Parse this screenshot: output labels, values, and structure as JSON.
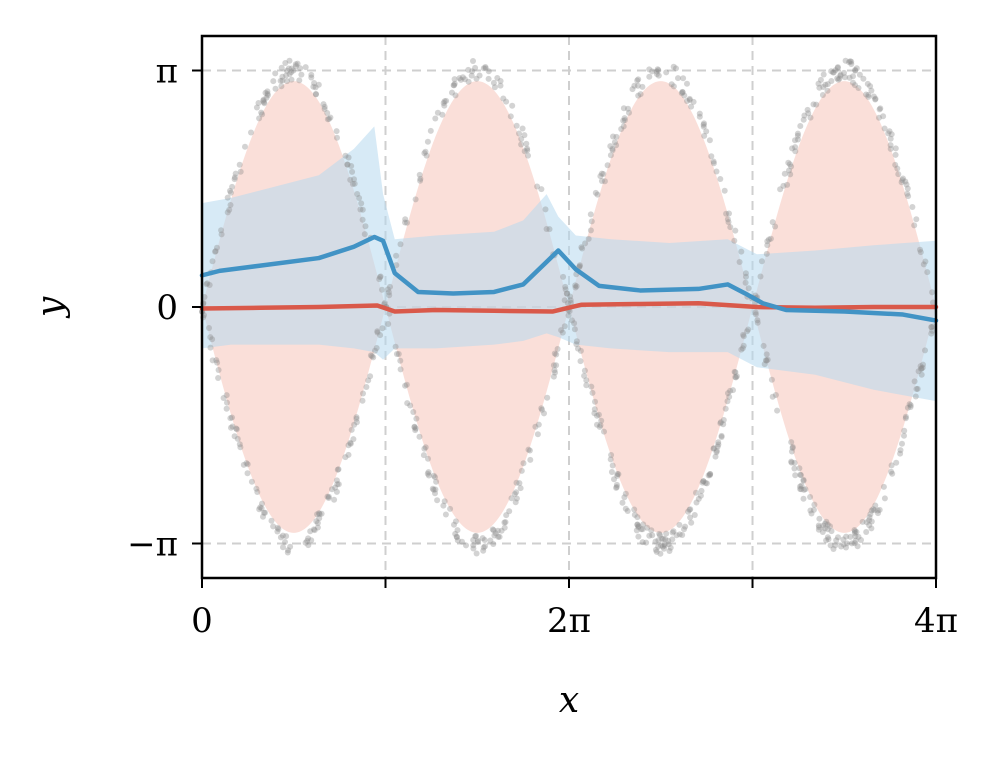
{
  "chart_data": {
    "type": "line",
    "title": "",
    "xlabel": "x",
    "ylabel": "y",
    "xlim": [
      0,
      12.566
    ],
    "ylim": [
      -3.6,
      3.6
    ],
    "grid": true,
    "legend": "none",
    "x_ticks": [
      {
        "value": 0,
        "label": "0"
      },
      {
        "value": 6.283,
        "label": "2π"
      },
      {
        "value": 12.566,
        "label": "4π"
      }
    ],
    "x_minor_ticks": [
      3.1416,
      9.4248
    ],
    "y_ticks": [
      {
        "value": 3.1416,
        "label": "π"
      },
      {
        "value": 0,
        "label": "0"
      },
      {
        "value": -3.1416,
        "label": "−π"
      }
    ],
    "colors": {
      "scatter": "#8c8c8c",
      "red_line": "#d9594a",
      "red_band": "#f6c9c0",
      "blue_line": "#4193c5",
      "blue_band": "#b6d9ee"
    },
    "scatter": {
      "description_function": "y = ±sin(x)·π",
      "samples": 900,
      "noise": 0.09
    },
    "series": [
      {
        "color": "#d9594a",
        "x": [
          0,
          1.0,
          2.0,
          3.0,
          3.3,
          4.0,
          5.0,
          6.0,
          6.5,
          7.5,
          8.5,
          9.5,
          10.5,
          11.5,
          12.566
        ],
        "y": [
          -0.02,
          -0.01,
          0.0,
          0.02,
          -0.06,
          -0.04,
          -0.05,
          -0.06,
          0.03,
          0.04,
          0.05,
          0.0,
          -0.01,
          0.0,
          0.0
        ]
      },
      {
        "color": "#4193c5",
        "x": [
          0,
          0.3,
          1.0,
          2.0,
          2.6,
          2.95,
          3.1,
          3.3,
          3.7,
          4.3,
          5.0,
          5.5,
          5.9,
          6.1,
          6.4,
          6.8,
          7.5,
          8.5,
          9.0,
          9.3,
          9.6,
          10.0,
          11.0,
          12.0,
          12.566
        ],
        "y": [
          0.42,
          0.48,
          0.55,
          0.65,
          0.8,
          0.93,
          0.88,
          0.45,
          0.2,
          0.18,
          0.2,
          0.3,
          0.6,
          0.75,
          0.5,
          0.28,
          0.22,
          0.24,
          0.3,
          0.18,
          0.05,
          -0.04,
          -0.06,
          -0.1,
          -0.18
        ]
      }
    ],
    "bands": [
      {
        "color": "#f6c9c0",
        "function_amplitude": 3.0,
        "center": 0
      },
      {
        "color": "#b6d9ee",
        "x": [
          0,
          0.5,
          1.0,
          2.0,
          2.6,
          2.95,
          3.1,
          3.3,
          4.0,
          5.0,
          5.5,
          5.9,
          6.1,
          6.4,
          7.0,
          8.0,
          9.0,
          9.5,
          10.5,
          11.5,
          12.566
        ],
        "upper": [
          1.38,
          1.45,
          1.55,
          1.75,
          2.1,
          2.4,
          1.5,
          0.9,
          0.95,
          1.0,
          1.15,
          1.5,
          1.2,
          0.95,
          0.9,
          0.85,
          0.9,
          0.7,
          0.75,
          0.82,
          0.88
        ],
        "lower": [
          -0.55,
          -0.5,
          -0.5,
          -0.5,
          -0.55,
          -0.6,
          -0.7,
          -0.55,
          -0.55,
          -0.5,
          -0.45,
          -0.35,
          -0.4,
          -0.5,
          -0.55,
          -0.6,
          -0.6,
          -0.8,
          -0.9,
          -1.1,
          -1.25
        ]
      }
    ]
  }
}
